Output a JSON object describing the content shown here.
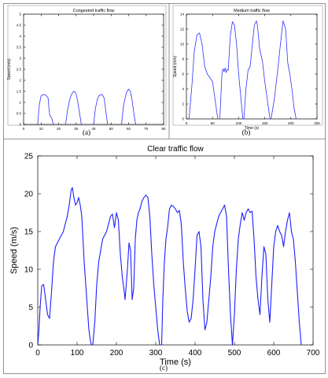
{
  "chart_data": [
    {
      "id": "a",
      "type": "line",
      "caption": "(a)",
      "title": "Congested traffic flow",
      "xlabel": "",
      "ylabel": "Speed (m/s)",
      "xlim": [
        0,
        80
      ],
      "ylim": [
        0,
        5
      ],
      "xticks": [
        0,
        10,
        20,
        30,
        40,
        50,
        60,
        70,
        80
      ],
      "yticks": [
        0,
        0.5,
        1,
        1.5,
        2,
        2.5,
        3,
        3.5,
        4,
        4.5,
        5
      ],
      "ytick_labels": [
        "0",
        "0.5",
        "1",
        "1.5",
        "2",
        "2.5",
        "3",
        "3.5",
        "4",
        "4.5",
        "5"
      ],
      "grid": false,
      "color": "#3030ff",
      "series": [
        {
          "x": [
            8,
            9,
            10,
            11,
            12,
            13,
            14,
            14.5,
            15,
            16,
            17
          ],
          "y": [
            0,
            0.9,
            1.3,
            1.35,
            1.35,
            1.3,
            1.2,
            0.7,
            0.4,
            0.3,
            0
          ]
        },
        {
          "x": [
            24,
            25,
            26,
            27,
            28,
            29,
            30,
            31,
            32,
            33
          ],
          "y": [
            0,
            0.6,
            1.0,
            1.3,
            1.45,
            1.5,
            1.4,
            1.0,
            0.5,
            0
          ]
        },
        {
          "x": [
            40,
            41,
            42,
            43,
            44,
            45,
            46,
            47,
            48
          ],
          "y": [
            0,
            0.7,
            1.1,
            1.3,
            1.35,
            1.35,
            1.2,
            0.6,
            0
          ]
        },
        {
          "x": [
            56,
            57,
            58,
            59,
            60,
            61,
            62,
            63,
            64
          ],
          "y": [
            0,
            0.8,
            1.2,
            1.5,
            1.6,
            1.5,
            1.1,
            0.5,
            0
          ]
        }
      ]
    },
    {
      "id": "b",
      "type": "line",
      "caption": "(b)",
      "title": "Medium traffic flow",
      "xlabel": "Time (s)",
      "ylabel": "Speed (m/s)",
      "xlim": [
        0,
        250
      ],
      "ylim": [
        0,
        14
      ],
      "xticks": [
        0,
        50,
        100,
        150,
        200,
        250
      ],
      "yticks": [
        0,
        2,
        4,
        6,
        8,
        10,
        12,
        14
      ],
      "ytick_labels": [
        "0",
        "2",
        "4",
        "6",
        "8",
        "10",
        "12",
        "14"
      ],
      "grid": false,
      "color": "#3030ff",
      "series": [
        {
          "x": [
            5,
            10,
            15,
            20,
            25,
            30,
            35,
            40,
            45,
            50,
            55,
            60
          ],
          "y": [
            0,
            4,
            9,
            11.2,
            11.5,
            10,
            7,
            6,
            5.5,
            5,
            2.5,
            0
          ]
        },
        {
          "x": [
            64,
            66,
            68,
            70,
            72,
            74,
            76,
            78,
            80,
            84,
            88,
            92,
            96,
            100,
            104,
            108
          ],
          "y": [
            0,
            3,
            6,
            6.7,
            6.3,
            6.8,
            6.2,
            6.6,
            6.5,
            11,
            13,
            12.5,
            10,
            6,
            3,
            0
          ]
        },
        {
          "x": [
            110,
            114,
            118,
            122,
            126,
            130,
            134,
            136,
            140,
            146,
            150,
            156,
            160
          ],
          "y": [
            0,
            4,
            6.5,
            7,
            9.8,
            12.5,
            13.1,
            12.5,
            9.5,
            7.5,
            5,
            2,
            0
          ]
        },
        {
          "x": [
            162,
            168,
            174,
            180,
            185,
            190,
            194,
            198,
            202,
            206,
            210
          ],
          "y": [
            0,
            2.5,
            6,
            10,
            13.1,
            12,
            7.5,
            6,
            4,
            1.5,
            0
          ]
        }
      ]
    },
    {
      "id": "c",
      "type": "line",
      "caption": "(c)",
      "title": "Clear traffic flow",
      "xlabel": "Time (s)",
      "ylabel": "Speed (m/s)",
      "xlim": [
        0,
        700
      ],
      "ylim": [
        0,
        25
      ],
      "xticks": [
        0,
        100,
        200,
        300,
        400,
        500,
        600,
        700
      ],
      "yticks": [
        0,
        5,
        10,
        15,
        20,
        25
      ],
      "ytick_labels": [
        "0",
        "5",
        "10",
        "15",
        "20",
        "25"
      ],
      "grid": false,
      "color": "#1f1fff",
      "series": [
        {
          "x": [
            0,
            3,
            6,
            10,
            15,
            20,
            25,
            30,
            35,
            40,
            45,
            50,
            55,
            60,
            65,
            70,
            75,
            80,
            85,
            88,
            92,
            96,
            100,
            104,
            108,
            112,
            115,
            118,
            122,
            126,
            130,
            134,
            137,
            140
          ],
          "y": [
            0,
            2,
            5,
            7.8,
            8,
            6,
            4,
            3.5,
            7,
            11,
            13,
            13.5,
            14,
            14.5,
            15,
            16,
            17,
            18.5,
            20.5,
            20.8,
            19.5,
            18.5,
            18.8,
            19.5,
            18.5,
            17,
            14,
            11,
            8,
            5,
            2,
            0.5,
            0,
            0
          ]
        },
        {
          "x": [
            140,
            145,
            150,
            155,
            160,
            165,
            170,
            175,
            180,
            185,
            190,
            195,
            200,
            205,
            210,
            215,
            220,
            222,
            228,
            232,
            236,
            240,
            244,
            248,
            252,
            256,
            260,
            265,
            270,
            275,
            280,
            285,
            290,
            295,
            300,
            305,
            310,
            315
          ],
          "y": [
            0,
            3,
            8,
            11,
            12.5,
            14,
            14.5,
            15,
            16,
            17,
            17.3,
            15.5,
            17.5,
            16.5,
            12,
            9,
            7,
            6,
            10,
            13.5,
            12.5,
            6,
            7.5,
            14,
            16.5,
            17.5,
            18,
            19,
            19.5,
            19.8,
            19.5,
            17,
            12,
            8,
            5,
            2,
            0,
            0
          ]
        },
        {
          "x": [
            315,
            318,
            322,
            326,
            330,
            335,
            340,
            345,
            350,
            355,
            360,
            365,
            370,
            375,
            380,
            385,
            390,
            395,
            400,
            405,
            410,
            415,
            420,
            425,
            430,
            435,
            440,
            445,
            450,
            455,
            460,
            465,
            470,
            475,
            480,
            485,
            490,
            495
          ],
          "y": [
            0,
            6,
            11,
            14,
            15.5,
            18,
            18.5,
            18.3,
            18,
            17.5,
            17.8,
            16,
            11,
            7.5,
            4.5,
            3,
            3.5,
            6,
            10,
            14.5,
            15,
            13,
            6,
            2,
            3,
            6,
            9,
            13,
            15,
            16,
            17,
            17.5,
            18,
            18.5,
            17,
            10,
            4,
            0
          ]
        },
        {
          "x": [
            495,
            500,
            505,
            510,
            515,
            520,
            525,
            530,
            535,
            540,
            545,
            550,
            555,
            560,
            565,
            570,
            575,
            580,
            585,
            590,
            595,
            600,
            605,
            610,
            615,
            620,
            625,
            630,
            635,
            640,
            645,
            650,
            655,
            660,
            665,
            670
          ],
          "y": [
            0,
            4,
            10,
            14,
            16,
            17.5,
            16.5,
            17.5,
            18,
            17.5,
            17.7,
            14,
            9,
            6,
            4,
            9,
            13,
            12,
            6,
            3,
            8,
            13,
            15,
            15.8,
            15,
            14.5,
            13,
            15,
            16.5,
            17.5,
            15,
            14,
            11,
            7,
            3,
            0
          ]
        }
      ]
    }
  ]
}
